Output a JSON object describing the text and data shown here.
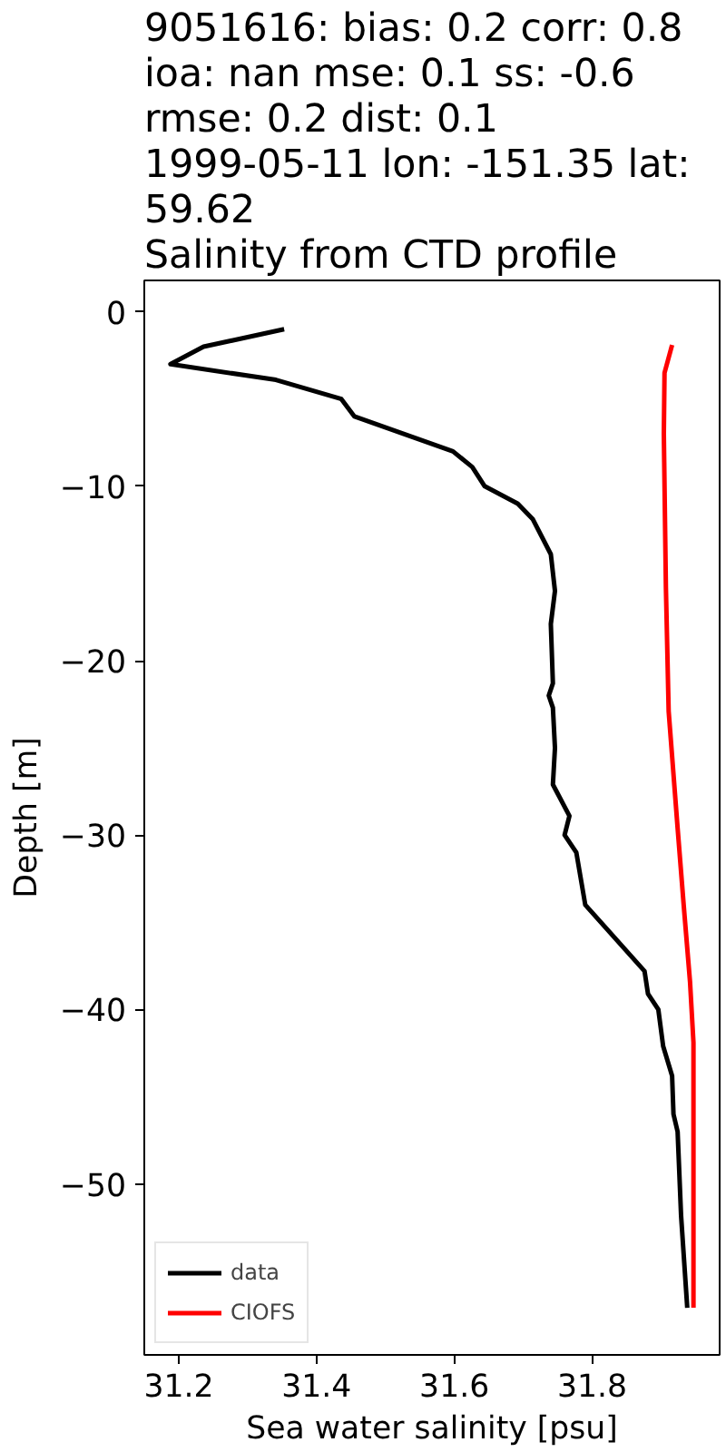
{
  "chart_data": {
    "type": "line",
    "title": "9051616: bias: 0.2  corr: 0.8\n ioa: nan  mse: 0.1  ss: -0.6\nrmse: 0.2  dist: 0.1\n1999-05-11 lon: -151.35 lat:\n59.62\nSalinity from CTD profile",
    "xlabel": "Sea water salinity [psu]",
    "ylabel": "Depth [m]",
    "xlim": [
      31.15,
      31.985
    ],
    "xticks": [
      31.2,
      31.4,
      31.6,
      31.8
    ],
    "ylim": [
      -59.8,
      1.8
    ],
    "yticks": [
      0,
      -10,
      -20,
      -30,
      -40,
      -50
    ],
    "grid": false,
    "legend": "bottom left",
    "line_style": "solid",
    "marker": "none",
    "series": [
      {
        "name": "data",
        "color": "#000000",
        "x": [
          31.353,
          31.236,
          31.188,
          31.341,
          31.436,
          31.455,
          31.598,
          31.626,
          31.644,
          31.692,
          31.714,
          31.74,
          31.746,
          31.74,
          31.743,
          31.737,
          31.743,
          31.746,
          31.743,
          31.767,
          31.76,
          31.777,
          31.79,
          31.876,
          31.881,
          31.896,
          31.903,
          31.916,
          31.918,
          31.924,
          31.929,
          31.938
        ],
        "values": [
          -1,
          -2,
          -3,
          -3.9,
          -5,
          -6,
          -8,
          -8.9,
          -10,
          -11,
          -11.9,
          -13.9,
          -16,
          -17.9,
          -21.3,
          -22,
          -22.7,
          -25,
          -27.1,
          -28.9,
          -30,
          -31,
          -34,
          -37.8,
          -39.1,
          -40,
          -42.1,
          -43.8,
          -46,
          -47,
          -51.8,
          -57.1
        ]
      },
      {
        "name": "CIOFS",
        "color": "#ff0000",
        "x": [
          31.916,
          31.905,
          31.904,
          31.907,
          31.911,
          31.924,
          31.933,
          31.942,
          31.947,
          31.947
        ],
        "values": [
          -1.9,
          -3.5,
          -7,
          -15.8,
          -22.9,
          -29.6,
          -34.1,
          -38.4,
          -41.9,
          -57.1
        ]
      }
    ]
  }
}
